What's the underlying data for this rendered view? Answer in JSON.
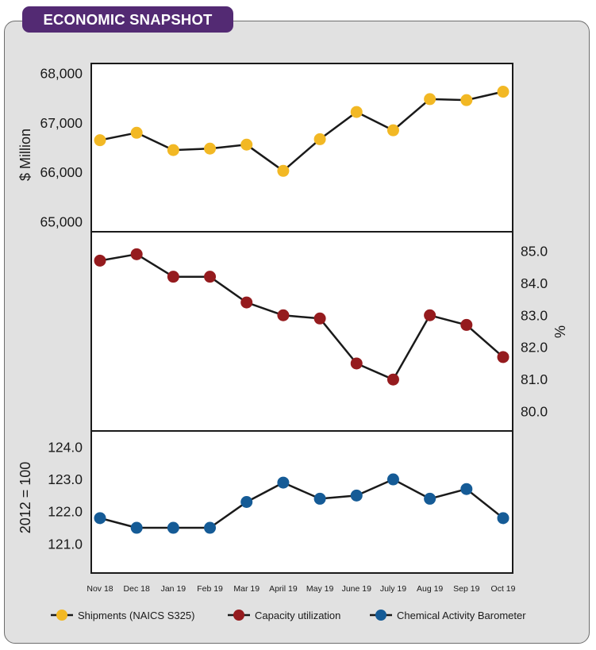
{
  "header": {
    "title": "ECONOMIC SNAPSHOT"
  },
  "chart_data": {
    "type": "line",
    "x": [
      "Nov 18",
      "Dec 18",
      "Jan 19",
      "Feb 19",
      "Mar 19",
      "April 19",
      "May 19",
      "June 19",
      "July 19",
      "Aug 19",
      "Sep 19",
      "Oct 19"
    ],
    "panels": [
      {
        "id": "shipments",
        "ylabel": "$ Million",
        "yaxis_side": "left",
        "ylim": [
          64800,
          68200
        ],
        "yticks": [
          65000,
          66000,
          67000,
          68000
        ],
        "ytick_labels": [
          "65,000",
          "66,000",
          "67,000",
          "68,000"
        ]
      },
      {
        "id": "capacity",
        "ylabel": "%",
        "yaxis_side": "right",
        "ylim": [
          79.4,
          85.6
        ],
        "yticks": [
          80.0,
          81.0,
          82.0,
          83.0,
          84.0,
          85.0
        ],
        "ytick_labels": [
          "80.0",
          "81.0",
          "82.0",
          "83.0",
          "84.0",
          "85.0"
        ]
      },
      {
        "id": "cab",
        "ylabel": "2012 = 100",
        "yaxis_side": "left",
        "ylim": [
          120.1,
          124.5
        ],
        "yticks": [
          121.0,
          122.0,
          123.0,
          124.0
        ],
        "ytick_labels": [
          "121.0",
          "122.0",
          "123.0",
          "124.0"
        ]
      }
    ],
    "series": [
      {
        "name": "Shipments (NAICS S325)",
        "panel": "shipments",
        "color": "#f2b824",
        "values": [
          66650,
          66800,
          66450,
          66480,
          66560,
          66030,
          66670,
          67220,
          66850,
          67480,
          67460,
          67630
        ]
      },
      {
        "name": "Capacity utilization",
        "panel": "capacity",
        "color": "#951b1e",
        "values": [
          84.7,
          84.9,
          84.2,
          84.2,
          83.4,
          83.0,
          82.9,
          81.5,
          81.0,
          83.0,
          82.7,
          81.7
        ]
      },
      {
        "name": "Chemical Activity Barometer",
        "panel": "cab",
        "color": "#155b96",
        "values": [
          121.8,
          121.5,
          121.5,
          121.5,
          122.3,
          122.9,
          122.4,
          122.5,
          123.0,
          122.4,
          122.7,
          121.8
        ]
      }
    ],
    "legend": {
      "position": "bottom"
    }
  }
}
